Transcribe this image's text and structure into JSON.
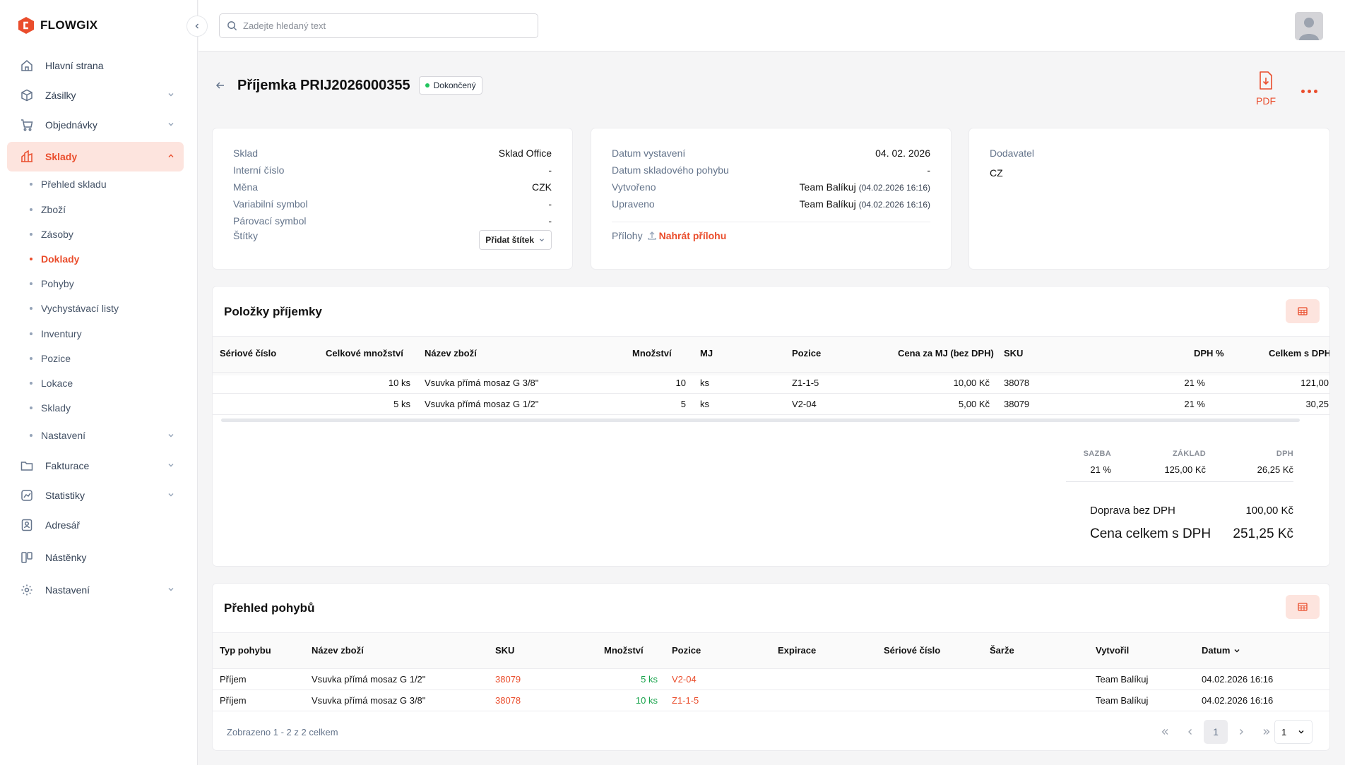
{
  "brand": {
    "name": "FLOWGIX",
    "accent": "#ea4d2c"
  },
  "search": {
    "placeholder": "Zadejte hledaný text"
  },
  "nav": {
    "home": "Hlavní strana",
    "shipments": "Zásilky",
    "orders": "Objednávky",
    "warehouses": "Sklady",
    "sub": [
      "Přehled skladu",
      "Zboží",
      "Zásoby",
      "Doklady",
      "Pohyby",
      "Vychystávací listy",
      "Inventury",
      "Pozice",
      "Lokace",
      "Sklady",
      "Nastavení"
    ],
    "invoicing": "Fakturace",
    "statistics": "Statistiky",
    "addressbook": "Adresář",
    "boards": "Nástěnky",
    "settings": "Nastavení"
  },
  "header": {
    "title": "Příjemka PRIJ2026000355",
    "status": "Dokončený",
    "pdf": "PDF"
  },
  "info1": {
    "warehouse_l": "Sklad",
    "warehouse_v": "Sklad Office",
    "internal_l": "Interní číslo",
    "internal_v": "-",
    "currency_l": "Měna",
    "currency_v": "CZK",
    "vs_l": "Variabilní symbol",
    "vs_v": "-",
    "pair_l": "Párovací symbol",
    "pair_v": "-",
    "tags_l": "Štítky",
    "tags_btn": "Přidat štítek"
  },
  "info2": {
    "issued_l": "Datum vystavení",
    "issued_v": "04. 02. 2026",
    "move_l": "Datum skladového pohybu",
    "move_v": "-",
    "created_l": "Vytvořeno",
    "created_by": "Team Balíkuj",
    "created_at": "(04.02.2026 16:16)",
    "updated_l": "Upraveno",
    "updated_by": "Team Balíkuj",
    "updated_at": "(04.02.2026 16:16)",
    "att_l": "Přílohy",
    "att_btn": "Nahrát přílohu"
  },
  "info3": {
    "supplier_l": "Dodavatel",
    "supplier_v": "CZ"
  },
  "items": {
    "title": "Položky příjemky",
    "columns": [
      "Sériové číslo",
      "Celkové množství",
      "Název zboží",
      "Množství",
      "MJ",
      "Pozice",
      "Cena za MJ (bez DPH)",
      "SKU",
      "DPH %",
      "Celkem s DPH"
    ],
    "rows": [
      {
        "serial": "",
        "total": "10 ks",
        "name": "Vsuvka přímá mosaz G 3/8\"",
        "qty": "10",
        "unit": "ks",
        "pos": "Z1-1-5",
        "price": "10,00 Kč",
        "sku": "38078",
        "vat": "21 %",
        "sum": "121,00"
      },
      {
        "serial": "",
        "total": "5 ks",
        "name": "Vsuvka přímá mosaz G 1/2\"",
        "qty": "5",
        "unit": "ks",
        "pos": "V2-04",
        "price": "5,00 Kč",
        "sku": "38079",
        "vat": "21 %",
        "sum": "30,25"
      }
    ],
    "vat_h": {
      "rate": "SAZBA",
      "base": "ZÁKLAD",
      "vat": "DPH"
    },
    "vat_row": {
      "rate": "21 %",
      "base": "125,00 Kč",
      "vat": "26,25 Kč"
    },
    "shipping_l": "Doprava bez DPH",
    "shipping_v": "100,00 Kč",
    "total_l": "Cena celkem s DPH",
    "total_v": "251,25 Kč"
  },
  "moves": {
    "title": "Přehled pohybů",
    "columns": [
      "Typ pohybu",
      "Název zboží",
      "SKU",
      "Množství",
      "Pozice",
      "Expirace",
      "Sériové číslo",
      "Šarže",
      "Vytvořil",
      "Datum"
    ],
    "rows": [
      {
        "type": "Příjem",
        "name": "Vsuvka přímá mosaz G 1/2\"",
        "sku": "38079",
        "qty": "5 ks",
        "pos": "V2-04",
        "by": "Team Balíkuj",
        "date": "04.02.2026 16:16"
      },
      {
        "type": "Příjem",
        "name": "Vsuvka přímá mosaz G 3/8\"",
        "sku": "38078",
        "qty": "10 ks",
        "pos": "Z1-1-5",
        "by": "Team Balíkuj",
        "date": "04.02.2026 16:16"
      }
    ],
    "summary": "Zobrazeno 1 - 2 z 2 celkem",
    "page": "1",
    "page_size": "1"
  }
}
